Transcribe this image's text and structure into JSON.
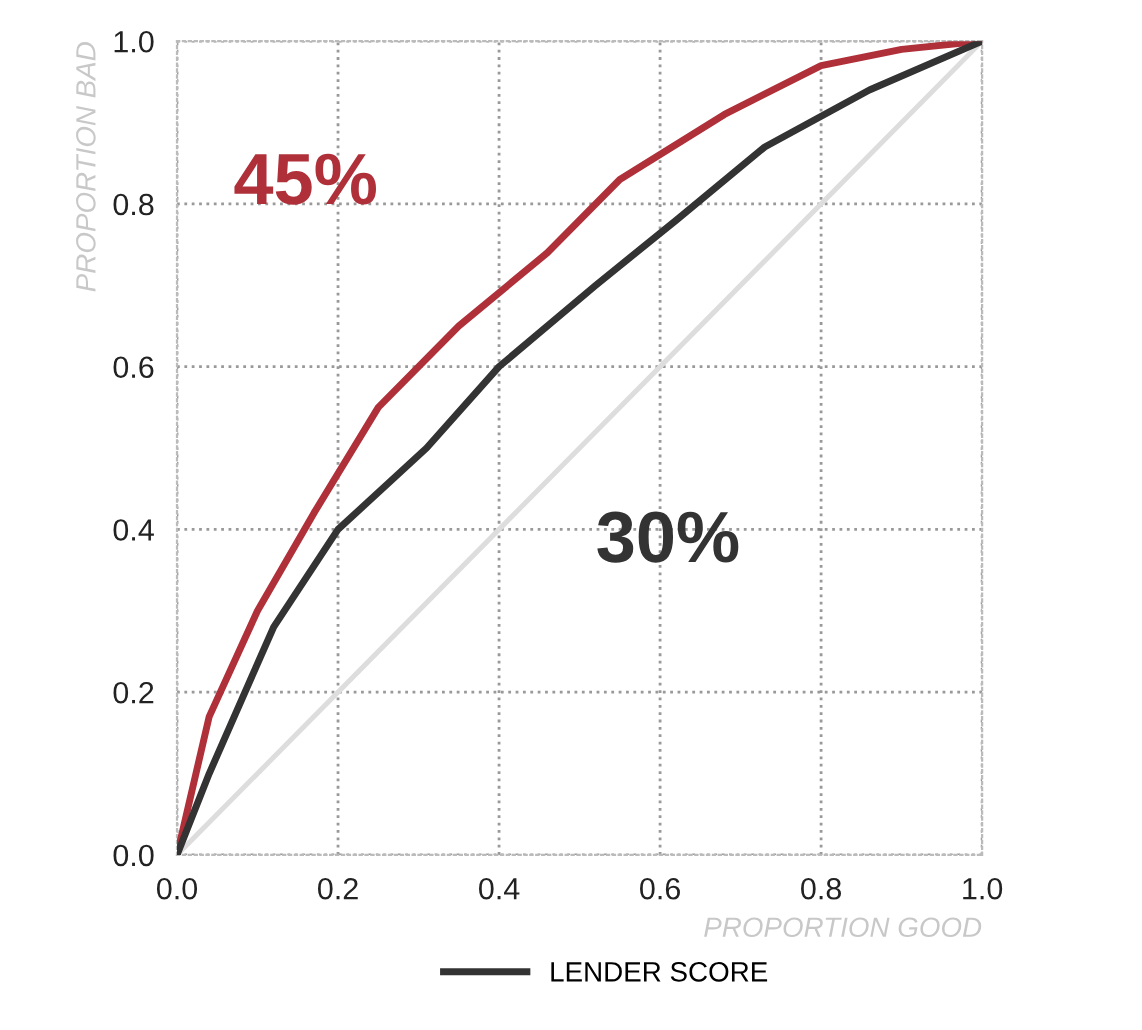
{
  "chart_data": {
    "type": "line",
    "xlabel": "PROPORTION GOOD",
    "ylabel": "PROPORTION BAD",
    "series": [
      {
        "color": "#b0303a",
        "x": [
          0,
          0.04,
          0.1,
          0.17,
          0.25,
          0.35,
          0.46,
          0.55,
          0.68,
          0.8,
          0.9,
          1
        ],
        "values": [
          0,
          0.17,
          0.3,
          0.42,
          0.55,
          0.65,
          0.74,
          0.83,
          0.91,
          0.97,
          0.99,
          1
        ]
      },
      {
        "name": "LENDER SCORE",
        "color": "#333333",
        "x": [
          0,
          0.04,
          0.12,
          0.2,
          0.31,
          0.4,
          0.52,
          0.62,
          0.73,
          0.86,
          1
        ],
        "values": [
          0,
          0.1,
          0.28,
          0.4,
          0.5,
          0.6,
          0.7,
          0.78,
          0.87,
          0.94,
          1
        ]
      },
      {
        "color": "#dddddd",
        "x": [
          0,
          1
        ],
        "values": [
          0,
          1
        ]
      }
    ],
    "annotations": [
      "45%",
      "30%"
    ],
    "xlim": [
      0,
      1
    ],
    "ylim": [
      0,
      1
    ],
    "xticks": [
      {
        "value": 0,
        "label": "0.0"
      },
      0.2,
      0.4,
      0.6,
      0.8,
      {
        "value": 1,
        "label": "1.0"
      }
    ],
    "yticks": [
      {
        "value": 0,
        "label": "0.0"
      },
      0.2,
      0.4,
      0.6,
      0.8,
      {
        "value": 1,
        "label": "1.0"
      }
    ],
    "grid": true,
    "legend": "bottom left",
    "line_style": "solid",
    "marker": "none"
  }
}
